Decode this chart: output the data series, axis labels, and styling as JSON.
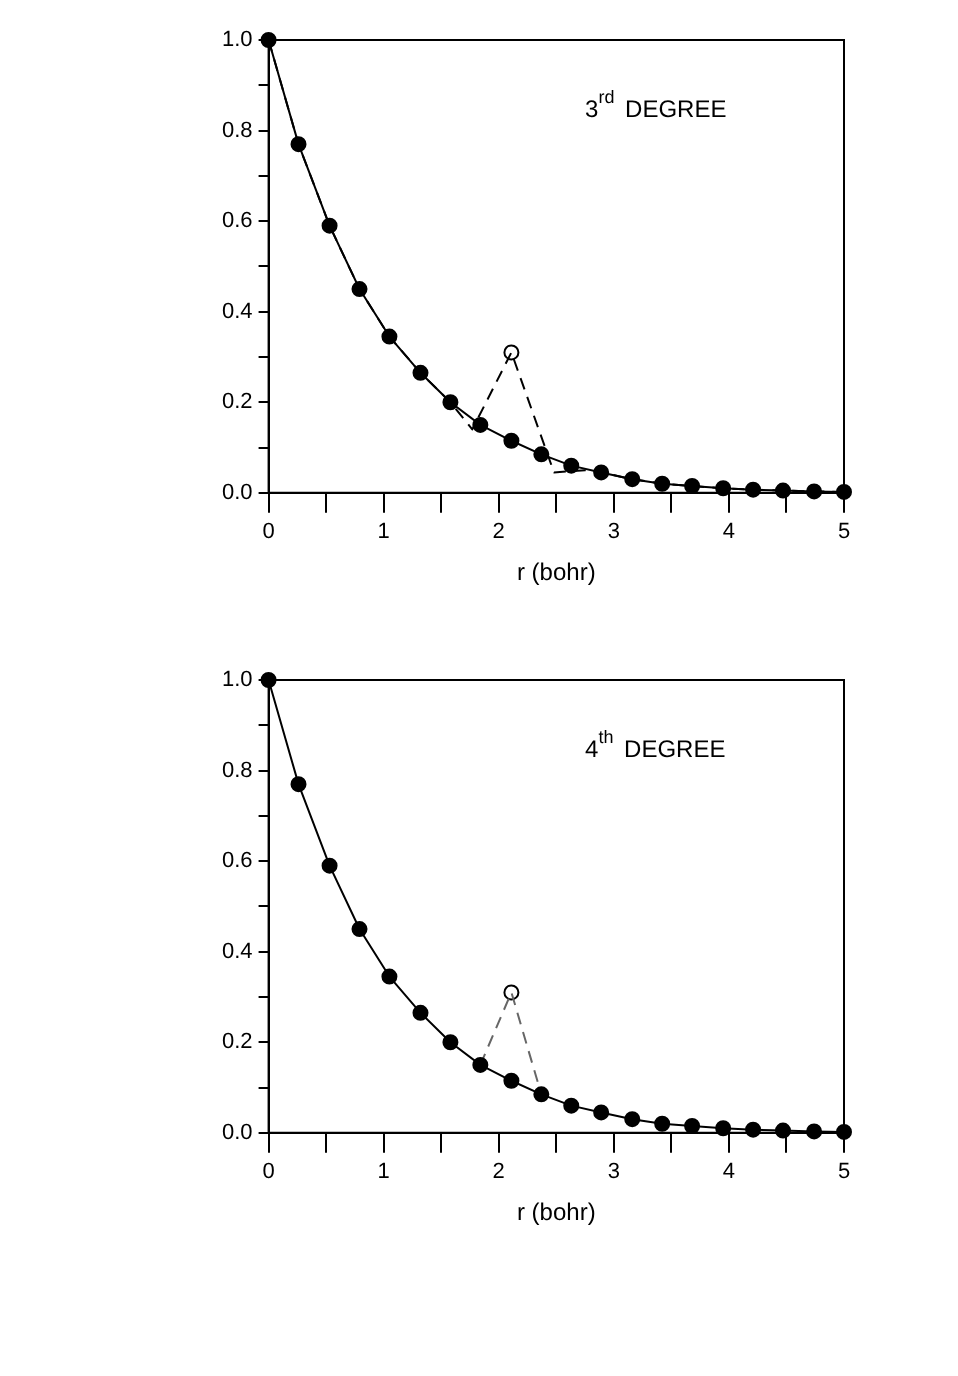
{
  "chart_data": [
    {
      "type": "line",
      "xlabel": "r (bohr)",
      "annotations": [
        "3$^{rd}$ DEGREE"
      ],
      "xlim": [
        0,
        5
      ],
      "ylim": [
        0,
        1
      ],
      "xticks": [
        0,
        {
          "value": 0.5,
          "label": null
        },
        1,
        {
          "value": 1.5,
          "label": null
        },
        2,
        {
          "value": 2.5,
          "label": null
        },
        3,
        {
          "value": 3.5,
          "label": null
        },
        4,
        {
          "value": 4.5,
          "label": null
        },
        5
      ],
      "yticks": [
        {
          "value": 0,
          "label": "0.0"
        },
        {
          "value": 0.1,
          "label": null
        },
        {
          "value": 0.2,
          "label": "0.2"
        },
        {
          "value": 0.3,
          "label": null
        },
        {
          "value": 0.4,
          "label": "0.4"
        },
        {
          "value": 0.5,
          "label": null
        },
        {
          "value": 0.6,
          "label": "0.6"
        },
        {
          "value": 0.7,
          "label": null
        },
        {
          "value": 0.8,
          "label": "0.8"
        },
        {
          "value": 0.9,
          "label": null
        },
        {
          "value": 1,
          "label": "1.0"
        }
      ],
      "grid": false,
      "legend": false,
      "series": [
        {
          "color": "#000000",
          "marker": "circle",
          "line_style": "solid",
          "x": [
            0,
            0.26,
            0.53,
            0.79,
            1.05,
            1.32,
            1.58,
            1.84,
            2.11,
            2.37,
            2.63,
            2.89,
            3.16,
            3.42,
            3.68,
            3.95,
            4.21,
            4.47,
            4.74,
            5
          ],
          "values": [
            1,
            0.77,
            0.59,
            0.45,
            0.345,
            0.265,
            0.2,
            0.15,
            0.115,
            0.085,
            0.06,
            0.045,
            0.03,
            0.02,
            0.015,
            0.01,
            0.007,
            0.005,
            0.003,
            0.002
          ]
        },
        {
          "color": "#000000",
          "marker": "none",
          "line_style": "dashed",
          "x": [
            0,
            0.26,
            0.53,
            0.79,
            1.05,
            1.32,
            1.58,
            1.77,
            2.11,
            2.48,
            2.75,
            2.89,
            3.16,
            3.42,
            3.68,
            3.95,
            4.21,
            4.47,
            4.74,
            5
          ],
          "values": [
            1,
            0.77,
            0.59,
            0.45,
            0.345,
            0.265,
            0.2,
            0.14,
            0.31,
            0.045,
            0.05,
            0.045,
            0.03,
            0.02,
            0.015,
            0.01,
            0.007,
            0.005,
            0.003,
            0.002
          ]
        },
        {
          "type": "scatter",
          "color": "#000000",
          "marker": "circle",
          "x": [
            2.11
          ],
          "values": [
            0.31
          ]
        }
      ]
    },
    {
      "type": "line",
      "xlabel": "r (bohr)",
      "annotations": [
        "4$^{th}$ DEGREE"
      ],
      "xlim": [
        0,
        5
      ],
      "ylim": [
        0,
        1
      ],
      "xticks": [
        0,
        {
          "value": 0.5,
          "label": null
        },
        1,
        {
          "value": 1.5,
          "label": null
        },
        2,
        {
          "value": 2.5,
          "label": null
        },
        3,
        {
          "value": 3.5,
          "label": null
        },
        4,
        {
          "value": 4.5,
          "label": null
        },
        5
      ],
      "yticks": [
        {
          "value": 0,
          "label": "0.0"
        },
        {
          "value": 0.1,
          "label": null
        },
        {
          "value": 0.2,
          "label": "0.2"
        },
        {
          "value": 0.3,
          "label": null
        },
        {
          "value": 0.4,
          "label": "0.4"
        },
        {
          "value": 0.5,
          "label": null
        },
        {
          "value": 0.6,
          "label": "0.6"
        },
        {
          "value": 0.7,
          "label": null
        },
        {
          "value": 0.8,
          "label": "0.8"
        },
        {
          "value": 0.9,
          "label": null
        },
        {
          "value": 1,
          "label": "1.0"
        }
      ],
      "grid": false,
      "legend": false,
      "series": [
        {
          "color": "#000000",
          "marker": "circle",
          "line_style": "solid",
          "x": [
            0,
            0.26,
            0.53,
            0.79,
            1.05,
            1.32,
            1.58,
            1.84,
            2.11,
            2.37,
            2.63,
            2.89,
            3.16,
            3.42,
            3.68,
            3.95,
            4.21,
            4.47,
            4.74,
            5
          ],
          "values": [
            1,
            0.77,
            0.59,
            0.45,
            0.345,
            0.265,
            0.2,
            0.15,
            0.115,
            0.085,
            0.06,
            0.045,
            0.03,
            0.02,
            0.015,
            0.01,
            0.007,
            0.005,
            0.003,
            0.002
          ]
        },
        {
          "color": "#666666",
          "marker": "none",
          "line_style": "dashed",
          "x": [
            1.84,
            2.11,
            2.37
          ],
          "values": [
            0.15,
            0.31,
            0.085
          ]
        },
        {
          "type": "scatter",
          "color": "#000000",
          "marker": "circle",
          "x": [
            2.11
          ],
          "values": [
            0.31
          ]
        }
      ]
    }
  ]
}
